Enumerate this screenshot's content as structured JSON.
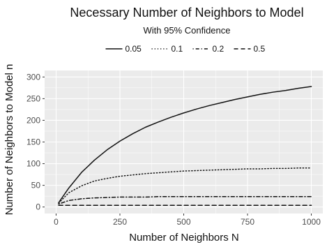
{
  "chart_data": {
    "type": "line",
    "title": "Necessary Number of Neighbors to Model",
    "subtitle": "With 95% Confidence",
    "xlabel": "Number of Neighbors N",
    "ylabel": "Number of Neighbors to Model n",
    "xlim": [
      0,
      1000
    ],
    "ylim": [
      0,
      300
    ],
    "xticks": [
      0,
      250,
      500,
      750,
      1000
    ],
    "yticks": [
      0,
      50,
      100,
      150,
      200,
      250,
      300
    ],
    "grid": true,
    "legend_position": "top",
    "x": [
      10,
      50,
      100,
      150,
      200,
      250,
      300,
      350,
      400,
      450,
      500,
      550,
      600,
      650,
      700,
      750,
      800,
      850,
      900,
      950,
      1000
    ],
    "series": [
      {
        "name": "0.05",
        "line_style": "solid",
        "values": [
          10,
          44,
          80,
          108,
          132,
          152,
          169,
          184,
          196,
          207,
          217,
          226,
          234,
          241,
          248,
          254,
          260,
          265,
          269,
          274,
          278
        ]
      },
      {
        "name": "0.1",
        "line_style": "dotted",
        "values": [
          9,
          33,
          49,
          60,
          66,
          71,
          74,
          77,
          79,
          81,
          83,
          84,
          85,
          86,
          87,
          88,
          88,
          89,
          89,
          90,
          90
        ]
      },
      {
        "name": "0.2",
        "line_style": "dashdot",
        "values": [
          7,
          15,
          19,
          21,
          22,
          23,
          23,
          23,
          24,
          24,
          24,
          24,
          24,
          24,
          24,
          24,
          24,
          24,
          24,
          24,
          24
        ]
      },
      {
        "name": "0.5",
        "line_style": "dashed",
        "values": [
          4,
          4,
          4,
          4,
          4,
          4,
          4,
          4,
          4,
          4,
          4,
          4,
          4,
          4,
          4,
          4,
          4,
          4,
          4,
          4,
          4
        ]
      }
    ]
  },
  "colors": {
    "panel_background": "#ebebeb",
    "grid_major": "#ffffff",
    "line": "#111111",
    "text": "#111111",
    "tick_text": "#4d4d4d"
  }
}
